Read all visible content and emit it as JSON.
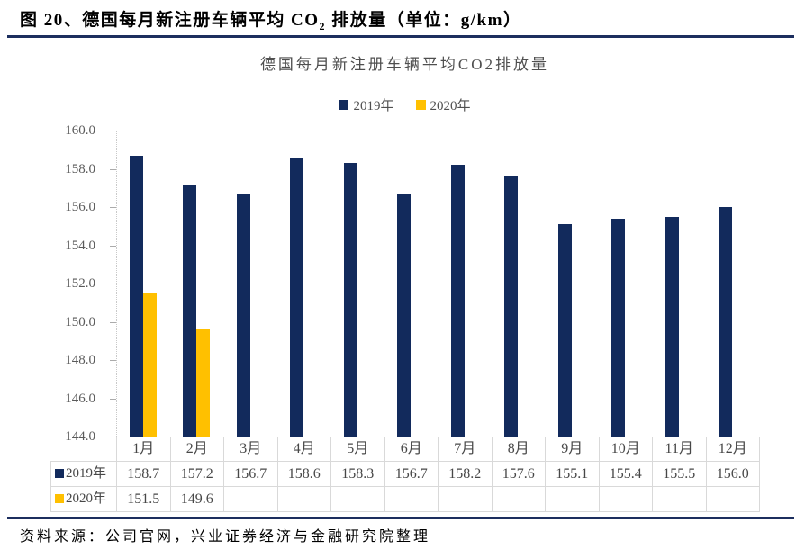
{
  "header": {
    "title_prefix": "图 20、德国每月新注册车辆平均 CO",
    "title_subscript": "2",
    "title_suffix": " 排放量（单位：g/km）"
  },
  "chart_data": {
    "type": "bar",
    "title": "德国每月新注册车辆平均CO2排放量",
    "categories": [
      "1月",
      "2月",
      "3月",
      "4月",
      "5月",
      "6月",
      "7月",
      "8月",
      "9月",
      "10月",
      "11月",
      "12月"
    ],
    "series": [
      {
        "name": "2019年",
        "color": "#122a5c",
        "values": [
          158.7,
          157.2,
          156.7,
          158.6,
          158.3,
          156.7,
          158.2,
          157.6,
          155.1,
          155.4,
          155.5,
          156.0
        ]
      },
      {
        "name": "2020年",
        "color": "#ffc000",
        "values": [
          151.5,
          149.6,
          null,
          null,
          null,
          null,
          null,
          null,
          null,
          null,
          null,
          null
        ]
      }
    ],
    "xlabel": "",
    "ylabel": "",
    "ylim": [
      144.0,
      160.0
    ],
    "ytick_step": 2,
    "ytick_decimals": 1,
    "grid": false,
    "legend_position": "top",
    "data_table_shown": true
  },
  "footer": {
    "source": "资料来源：公司官网，兴业证券经济与金融研究院整理"
  },
  "colors": {
    "rule": "#1c2e5e",
    "navy": "#122a5c",
    "gold": "#ffc000",
    "table_border": "#d9d9d9",
    "chart_text": "#4f4f4f"
  }
}
